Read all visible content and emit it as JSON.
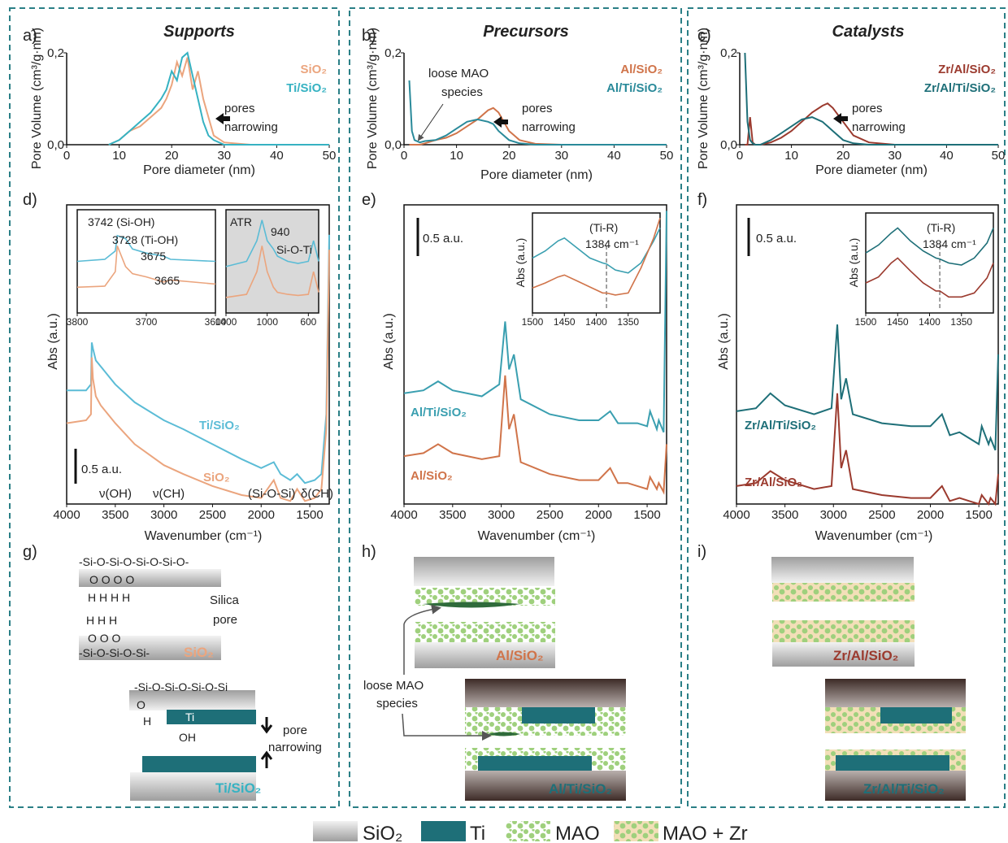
{
  "chart_data": [
    {
      "type": "line",
      "label": "a)",
      "title": "Supports",
      "xlabel": "Pore diameter (nm)",
      "ylabel": "Pore Volume (cm³/g·nm)",
      "xlim": [
        0,
        50
      ],
      "ylim": [
        0,
        0.2
      ],
      "xticks": [
        0,
        10,
        20,
        30,
        40,
        50
      ],
      "yticks": [
        {
          "value": 0,
          "label": "0,0"
        },
        {
          "value": 0.2,
          "label": "0,2"
        }
      ],
      "x": [
        8,
        10,
        12,
        14,
        16,
        18,
        19,
        20,
        21,
        22,
        23,
        24,
        25,
        26,
        27,
        28,
        30,
        35,
        40,
        50
      ],
      "series": [
        {
          "name": "SiO₂",
          "color": "#eba57e",
          "values": [
            0,
            0.01,
            0.03,
            0.04,
            0.06,
            0.08,
            0.1,
            0.13,
            0.18,
            0.15,
            0.19,
            0.12,
            0.16,
            0.1,
            0.06,
            0.02,
            0.005,
            0,
            0,
            0
          ]
        },
        {
          "name": "Ti/SiO₂",
          "color": "#36b2c2",
          "values": [
            0,
            0.01,
            0.03,
            0.05,
            0.07,
            0.1,
            0.12,
            0.16,
            0.14,
            0.19,
            0.2,
            0.15,
            0.1,
            0.05,
            0.02,
            0.01,
            0,
            0,
            0,
            0
          ]
        }
      ],
      "annotations": [
        "pores",
        "narrowing"
      ]
    },
    {
      "type": "line",
      "label": "b)",
      "title": "Precursors",
      "xlabel": "Pore diameter (nm)",
      "ylabel": "Pore Volume (cm³/g·nm)",
      "xlim": [
        0,
        50
      ],
      "ylim": [
        0,
        0.2
      ],
      "xticks": [
        0,
        10,
        20,
        30,
        40,
        50
      ],
      "yticks": [
        {
          "value": 0,
          "label": "0,0"
        },
        {
          "value": 0.2,
          "label": "0,2"
        }
      ],
      "x": [
        1,
        1.5,
        2,
        3,
        4,
        6,
        8,
        10,
        12,
        14,
        16,
        17,
        18,
        20,
        22,
        25,
        30,
        40,
        50
      ],
      "series": [
        {
          "name": "Al/SiO₂",
          "color": "#d0744a",
          "values": [
            0,
            0,
            0,
            0,
            0.003,
            0.01,
            0.015,
            0.025,
            0.04,
            0.055,
            0.075,
            0.08,
            0.07,
            0.03,
            0.01,
            0.002,
            0,
            0,
            0
          ]
        },
        {
          "name": "Al/Ti/SiO₂",
          "color": "#2a8a9a",
          "values": [
            0.14,
            0.03,
            0.01,
            0.005,
            0.008,
            0.01,
            0.02,
            0.035,
            0.05,
            0.055,
            0.05,
            0.045,
            0.03,
            0.01,
            0.003,
            0,
            0,
            0,
            0
          ]
        }
      ],
      "annotations": [
        "loose MAO",
        "species",
        "pores",
        "narrowing"
      ]
    },
    {
      "type": "line",
      "label": "c)",
      "title": "Catalysts",
      "xlabel": "Pore diameter (nm)",
      "ylabel": "Pore Volume (cm³/g·nm)",
      "xlim": [
        0,
        50
      ],
      "ylim": [
        0,
        0.2
      ],
      "xticks": [
        0,
        10,
        20,
        30,
        40,
        50
      ],
      "yticks": [
        {
          "value": 0,
          "label": "0,0"
        },
        {
          "value": 0.2,
          "label": "0,2"
        }
      ],
      "x": [
        1,
        1.5,
        2,
        2.5,
        3,
        4,
        6,
        8,
        10,
        12,
        14,
        16,
        17,
        18,
        20,
        22,
        25,
        30,
        40,
        50
      ],
      "series": [
        {
          "name": "Zr/Al/SiO₂",
          "color": "#9b3a2e",
          "values": [
            0,
            0,
            0.06,
            0.005,
            0,
            0,
            0.005,
            0.015,
            0.03,
            0.05,
            0.07,
            0.085,
            0.09,
            0.08,
            0.05,
            0.02,
            0.005,
            0,
            0,
            0
          ]
        },
        {
          "name": "Zr/Al/Ti/SiO₂",
          "color": "#1e6f78",
          "values": [
            0.2,
            0.05,
            0.01,
            0.003,
            0,
            0,
            0.01,
            0.025,
            0.04,
            0.055,
            0.06,
            0.05,
            0.04,
            0.03,
            0.01,
            0.003,
            0,
            0,
            0,
            0
          ]
        }
      ],
      "annotations": [
        "pores",
        "narrowing"
      ]
    },
    {
      "type": "line",
      "label": "d)",
      "xlabel": "Wavenumber (cm⁻¹)",
      "ylabel": "Abs (a.u.)",
      "xlim": [
        4000,
        1300
      ],
      "ylim": [
        0,
        1
      ],
      "xticks": [
        4000,
        3500,
        3000,
        2500,
        2000,
        1500
      ],
      "x": [
        4000,
        3800,
        3750,
        3742,
        3730,
        3700,
        3650,
        3500,
        3300,
        3000,
        2800,
        2500,
        2200,
        2000,
        1870,
        1800,
        1700,
        1630,
        1550,
        1450,
        1380,
        1330,
        1300
      ],
      "series": [
        {
          "name": "Ti/SiO₂",
          "color": "#5bbcd6",
          "values": [
            0.38,
            0.38,
            0.4,
            0.54,
            0.52,
            0.48,
            0.46,
            0.4,
            0.34,
            0.28,
            0.25,
            0.2,
            0.15,
            0.12,
            0.14,
            0.1,
            0.08,
            0.1,
            0.07,
            0.08,
            0.1,
            0.3,
            0.9
          ]
        },
        {
          "name": "SiO₂",
          "color": "#eba57e",
          "values": [
            0.27,
            0.28,
            0.3,
            0.49,
            0.42,
            0.36,
            0.33,
            0.27,
            0.2,
            0.13,
            0.1,
            0.06,
            0.03,
            0.02,
            0.08,
            0.02,
            0.01,
            0.05,
            0.01,
            0.02,
            0.05,
            0.25,
            0.85
          ]
        }
      ],
      "annotations": [
        "0.5 a.u.",
        "ν(OH)",
        "ν(CH)",
        "(Si-O-Si)",
        "δ(CH)"
      ]
    },
    {
      "type": "line",
      "xlim": [
        3800,
        3600
      ],
      "ylim": [
        0,
        1
      ],
      "xticks": [
        3800,
        3700,
        3600
      ],
      "x": [
        3800,
        3760,
        3745,
        3742,
        3730,
        3720,
        3700,
        3675,
        3665,
        3600
      ],
      "series": [
        {
          "color": "#5bbcd6",
          "values": [
            0.5,
            0.52,
            0.6,
            0.75,
            0.72,
            0.62,
            0.58,
            0.55,
            0.52,
            0.5
          ]
        },
        {
          "color": "#eba57e",
          "values": [
            0.25,
            0.26,
            0.4,
            0.65,
            0.45,
            0.38,
            0.35,
            0.3,
            0.32,
            0.28
          ]
        }
      ],
      "annotations": [
        "3742  (Si-OH)",
        "3728  (Ti-OH)",
        "3675",
        "3665"
      ]
    },
    {
      "type": "line",
      "xlim": [
        1400,
        500
      ],
      "ylim": [
        0,
        1
      ],
      "xticks": [
        1400,
        1000,
        600
      ],
      "x": [
        1400,
        1200,
        1100,
        1050,
        1000,
        940,
        900,
        800,
        700,
        600,
        550,
        500
      ],
      "series": [
        {
          "color": "#5bbcd6",
          "values": [
            0.45,
            0.5,
            0.7,
            0.9,
            0.7,
            0.62,
            0.55,
            0.5,
            0.48,
            0.5,
            0.7,
            0.5
          ]
        },
        {
          "color": "#eba57e",
          "values": [
            0.15,
            0.18,
            0.4,
            0.65,
            0.4,
            0.25,
            0.2,
            0.18,
            0.17,
            0.18,
            0.4,
            0.2
          ]
        }
      ],
      "annotations": [
        "ATR",
        "940",
        "Si-O-Ti"
      ]
    },
    {
      "type": "line",
      "label": "e)",
      "xlabel": "Wavenumber (cm⁻¹)",
      "ylabel": "Abs (a.u.)",
      "xlim": [
        4000,
        1300
      ],
      "ylim": [
        0,
        1
      ],
      "xticks": [
        4000,
        3500,
        3000,
        2500,
        2000,
        1500
      ],
      "x": [
        4000,
        3800,
        3650,
        3500,
        3200,
        3020,
        2960,
        2920,
        2870,
        2800,
        2500,
        2200,
        2000,
        1880,
        1800,
        1700,
        1600,
        1500,
        1470,
        1400,
        1380,
        1330,
        1300
      ],
      "series": [
        {
          "name": "Al/Ti/SiO₂",
          "color": "#3a9fb0",
          "values": [
            0.37,
            0.38,
            0.41,
            0.38,
            0.36,
            0.4,
            0.61,
            0.45,
            0.5,
            0.35,
            0.3,
            0.28,
            0.28,
            0.31,
            0.27,
            0.27,
            0.27,
            0.26,
            0.31,
            0.25,
            0.28,
            0.24,
            0.98
          ]
        },
        {
          "name": "Al/SiO₂",
          "color": "#d0744a",
          "values": [
            0.16,
            0.17,
            0.2,
            0.17,
            0.15,
            0.16,
            0.43,
            0.25,
            0.3,
            0.14,
            0.1,
            0.08,
            0.08,
            0.12,
            0.07,
            0.07,
            0.06,
            0.05,
            0.09,
            0.05,
            0.07,
            0.04,
            0.2
          ]
        }
      ],
      "annotations": [
        "0.5 a.u."
      ]
    },
    {
      "type": "line",
      "ylabel": "Abs (a.u.)",
      "xlim": [
        1500,
        1300
      ],
      "ylim": [
        0,
        1
      ],
      "xticks": [
        1500,
        1450,
        1400,
        1350
      ],
      "x": [
        1500,
        1480,
        1460,
        1450,
        1430,
        1410,
        1390,
        1384,
        1370,
        1350,
        1330,
        1310,
        1300
      ],
      "series": [
        {
          "color": "#3a9fb0",
          "values": [
            0.55,
            0.62,
            0.72,
            0.75,
            0.65,
            0.55,
            0.5,
            0.49,
            0.43,
            0.4,
            0.5,
            0.72,
            0.85
          ]
        },
        {
          "color": "#d0744a",
          "values": [
            0.25,
            0.3,
            0.36,
            0.38,
            0.32,
            0.26,
            0.2,
            0.2,
            0.18,
            0.2,
            0.45,
            0.75,
            0.95
          ]
        }
      ],
      "annotations": [
        "(Ti-R)",
        "1384 cm⁻¹"
      ]
    },
    {
      "type": "line",
      "label": "f)",
      "xlabel": "Wavenumber (cm⁻¹)",
      "ylabel": "Abs (a.u.)",
      "xlim": [
        4000,
        1300
      ],
      "ylim": [
        0,
        1
      ],
      "xticks": [
        4000,
        3500,
        3000,
        2500,
        2000,
        1500
      ],
      "x": [
        4000,
        3800,
        3650,
        3500,
        3200,
        3020,
        2960,
        2920,
        2870,
        2800,
        2500,
        2200,
        2000,
        1880,
        1800,
        1700,
        1600,
        1500,
        1470,
        1400,
        1380,
        1330,
        1300
      ],
      "series": [
        {
          "name": "Zr/Al/Ti/SiO₂",
          "color": "#1e6f78",
          "values": [
            0.31,
            0.32,
            0.37,
            0.33,
            0.3,
            0.32,
            0.6,
            0.35,
            0.42,
            0.3,
            0.27,
            0.26,
            0.26,
            0.3,
            0.23,
            0.24,
            0.22,
            0.2,
            0.26,
            0.2,
            0.22,
            0.18,
            0.5
          ]
        },
        {
          "name": "Zr/Al/SiO₂",
          "color": "#9b3a2e",
          "values": [
            0.06,
            0.07,
            0.11,
            0.08,
            0.05,
            0.06,
            0.37,
            0.12,
            0.18,
            0.05,
            0.03,
            0.02,
            0.02,
            0.06,
            0.01,
            0.02,
            0.01,
            0,
            0.03,
            0,
            0.02,
            0,
            0.1
          ]
        }
      ],
      "annotations": [
        "0.5 a.u."
      ]
    },
    {
      "type": "line",
      "ylabel": "Abs (a.u.)",
      "xlim": [
        1500,
        1300
      ],
      "ylim": [
        0,
        1
      ],
      "xticks": [
        1500,
        1450,
        1400,
        1350
      ],
      "x": [
        1500,
        1480,
        1460,
        1450,
        1430,
        1410,
        1390,
        1384,
        1370,
        1350,
        1330,
        1310,
        1300
      ],
      "series": [
        {
          "color": "#1e6f78",
          "values": [
            0.6,
            0.68,
            0.8,
            0.85,
            0.72,
            0.62,
            0.55,
            0.54,
            0.5,
            0.48,
            0.55,
            0.7,
            0.85
          ]
        },
        {
          "color": "#9b3a2e",
          "values": [
            0.3,
            0.36,
            0.5,
            0.55,
            0.42,
            0.3,
            0.22,
            0.22,
            0.16,
            0.16,
            0.2,
            0.35,
            0.5
          ]
        }
      ],
      "annotations": [
        "(Ti-R)",
        "1384 cm⁻¹"
      ]
    }
  ],
  "diagrams": {
    "g": {
      "label": "g)",
      "top_chain": "-Si-O-Si-O-Si-O-Si-O-",
      "top_o": "O     O     O     O",
      "top_h": "H      H      H      H",
      "pore_text": [
        "Silica",
        "pore"
      ],
      "bottom_h": "H     H     H",
      "bottom_o": "O     O     O",
      "bottom_chain": "-Si-O-Si-O-Si-",
      "material": "SiO₂",
      "ti_chain": "-Si-O-Si-O-Si-O-Si",
      "ti_o": "O",
      "ti_h": "H",
      "ti": "Ti",
      "oh": "OH",
      "narrowing": [
        "pore",
        "narrowing"
      ],
      "ti_material": "Ti/SiO₂"
    },
    "h": {
      "label": "h)",
      "material_top": "Al/SiO₂",
      "loose": [
        "loose MAO",
        "species"
      ],
      "material_bottom": "Al/Ti/SiO₂"
    },
    "i": {
      "label": "i)",
      "material_top": "Zr/Al/SiO₂",
      "material_bottom": "Zr/Al/Ti/SiO₂"
    }
  },
  "legend": [
    {
      "label": "SiO₂"
    },
    {
      "label": "Ti"
    },
    {
      "label": "MAO"
    },
    {
      "label": "MAO + Zr"
    }
  ]
}
